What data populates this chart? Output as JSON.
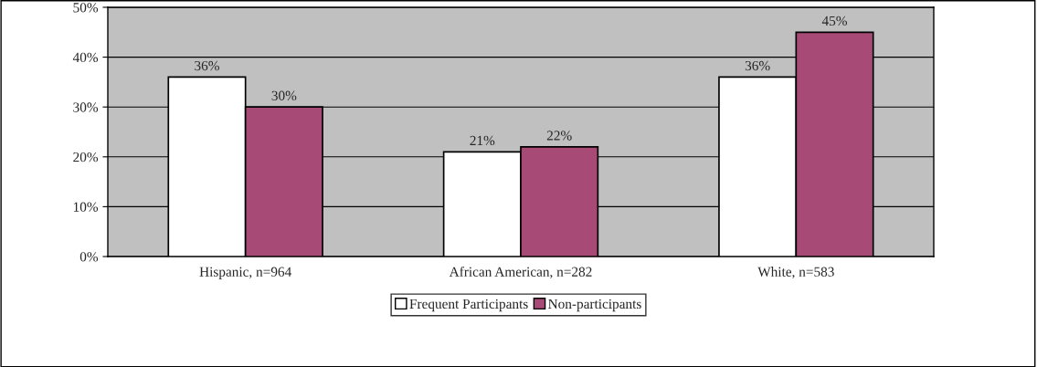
{
  "chart_data": {
    "type": "bar",
    "categories": [
      "Hispanic, n=964",
      "African American, n=282",
      "White, n=583"
    ],
    "series": [
      {
        "name": "Frequent Participants",
        "color": "#ffffff",
        "values": [
          36,
          21,
          36
        ],
        "value_labels": [
          "36%",
          "21%",
          "36%"
        ]
      },
      {
        "name": "Non-participants",
        "color": "#a84a76",
        "values": [
          30,
          22,
          45
        ],
        "value_labels": [
          "30%",
          "22%",
          "45%"
        ]
      }
    ],
    "ylim": [
      0,
      50
    ],
    "yticks": [
      {
        "value": 0,
        "label": "0%"
      },
      {
        "value": 10,
        "label": "10%"
      },
      {
        "value": 20,
        "label": "20%"
      },
      {
        "value": 30,
        "label": "30%"
      },
      {
        "value": 40,
        "label": "40%"
      },
      {
        "value": 50,
        "label": "50%"
      }
    ],
    "grid": "y",
    "legend": "bottom"
  }
}
